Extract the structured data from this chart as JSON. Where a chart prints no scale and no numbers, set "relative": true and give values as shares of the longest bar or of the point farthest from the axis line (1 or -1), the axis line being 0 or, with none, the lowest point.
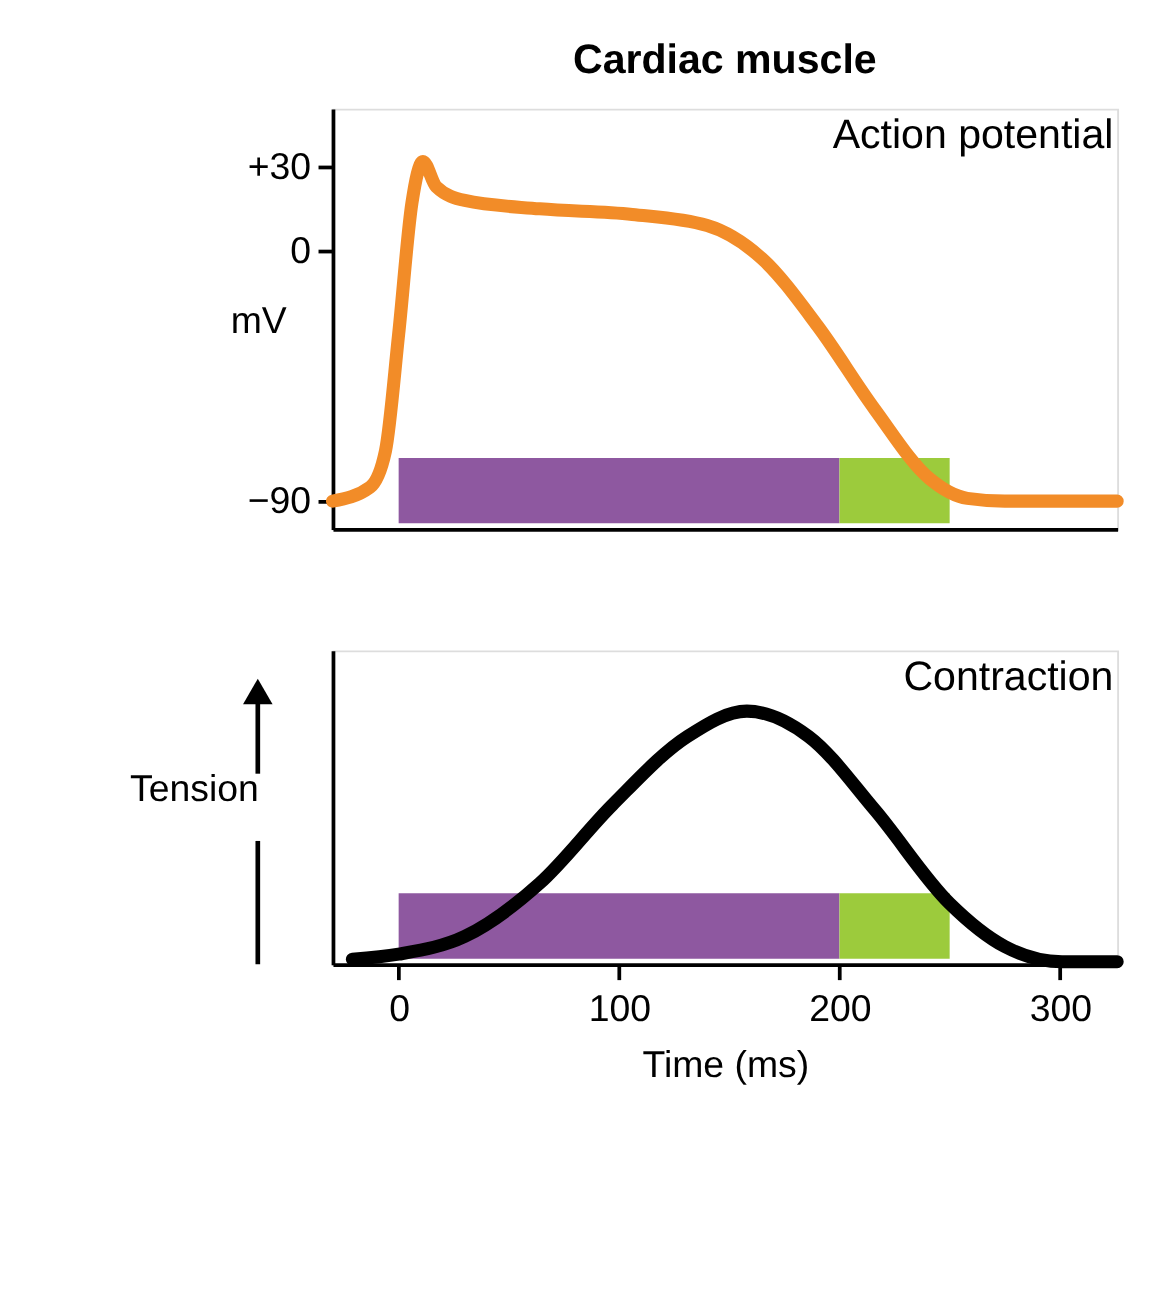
{
  "chart_data": [
    {
      "type": "line",
      "title": "Cardiac muscle",
      "ylabel": "mV",
      "annotations": [
        "Action potential"
      ],
      "x": [
        -30,
        -13,
        -6,
        0,
        6,
        11,
        17,
        30,
        64,
        106,
        140,
        165,
        190,
        216,
        241,
        258,
        275,
        326
      ],
      "series": [
        {
          "color": "#f28c28",
          "values": [
            -90,
            -85,
            -72,
            -30,
            17,
            32,
            23,
            18,
            15,
            13,
            9,
            -3,
            -27,
            -57,
            -82,
            -89,
            -90,
            -90
          ]
        }
      ],
      "xlim": [
        -30,
        326
      ],
      "ylim": [
        -100,
        51
      ],
      "yticks": [
        {
          "value": 30,
          "label": "+30"
        },
        0,
        {
          "value": -90,
          "label": "−90"
        }
      ],
      "bands": [
        {
          "axis": "x",
          "from": 0,
          "to": 200,
          "label": null,
          "color": "#8e58a0"
        },
        {
          "axis": "x",
          "from": 200,
          "to": 250,
          "label": null,
          "color": "#9ccb3c"
        }
      ],
      "tick_labels": "y",
      "grid": false,
      "line_style": "solid"
    },
    {
      "type": "line",
      "relative": true,
      "xlabel": "Time (ms)",
      "ylabel": "Tension",
      "annotations": [
        "Contraction"
      ],
      "x": [
        -21,
        0,
        30,
        64,
        97,
        131,
        158,
        186,
        216,
        250,
        275,
        301,
        326
      ],
      "series": [
        {
          "color": "#000000",
          "values": [
            0.02,
            0.04,
            0.11,
            0.32,
            0.63,
            0.9,
            1,
            0.9,
            0.61,
            0.24,
            0.07,
            0.01,
            0.01
          ]
        }
      ],
      "xlim": [
        -30,
        326
      ],
      "xticks": [
        0,
        100,
        200,
        300
      ],
      "bands": [
        {
          "axis": "x",
          "from": 0,
          "to": 200,
          "label": null,
          "color": "#8e58a0"
        },
        {
          "axis": "x",
          "from": 200,
          "to": 250,
          "label": null,
          "color": "#9ccb3c"
        }
      ],
      "tick_labels": "x",
      "grid": false,
      "line_style": "solid"
    }
  ]
}
